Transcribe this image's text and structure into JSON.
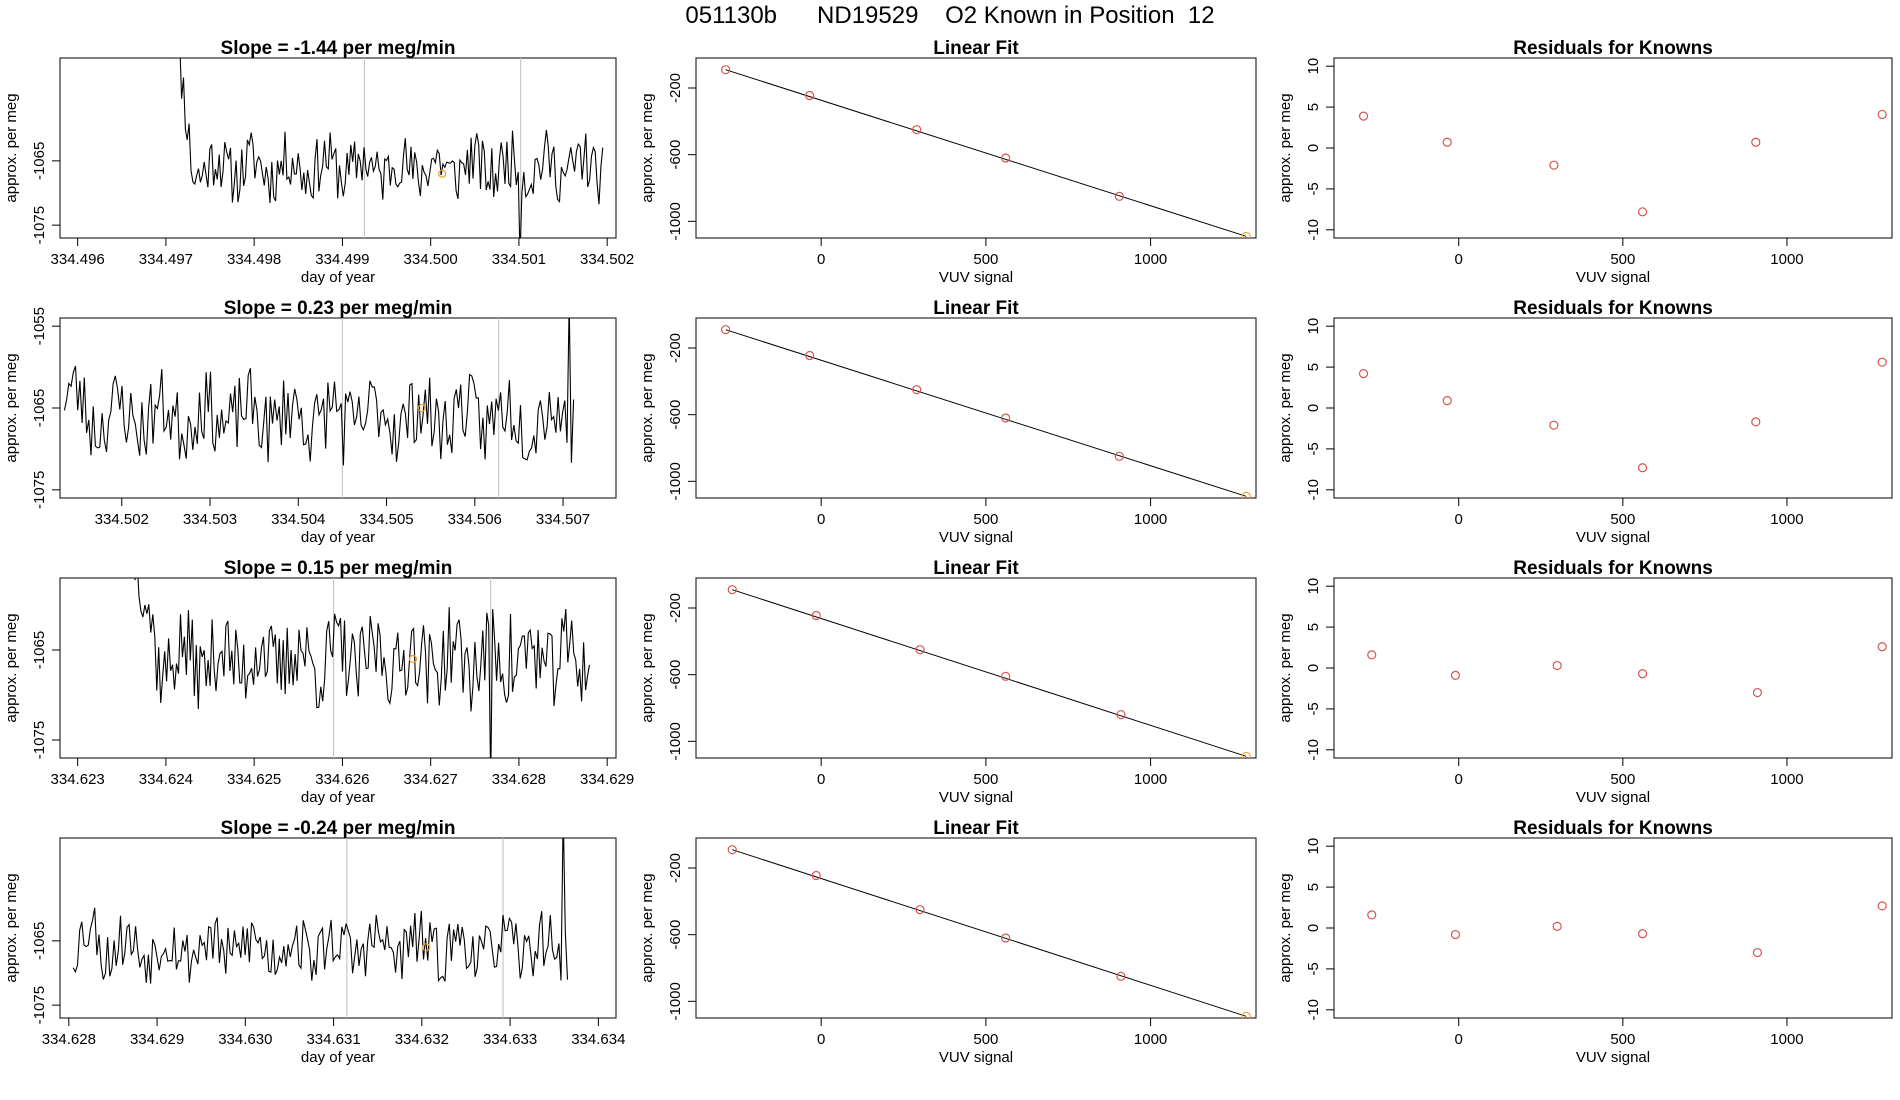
{
  "title": "051130b      ND19529    O2 Known in Position  12",
  "colors": {
    "line": "#000000",
    "point_known": "#d9534f",
    "point_highlight": "#f0a030",
    "grid_vline": "#c8c8c8"
  },
  "chart_data": [
    {
      "type": "line",
      "title": "Slope =  -1.44  per meg/min",
      "xlabel": "day of year",
      "ylabel": "approx. per meg",
      "xlim": [
        334.4958,
        334.5021
      ],
      "ylim": [
        -1077,
        -1049
      ],
      "xticks": [
        334.496,
        334.497,
        334.498,
        334.499,
        334.5,
        334.501,
        334.502
      ],
      "xtick_labels": [
        "334.496",
        "334.497",
        "334.498",
        "334.499",
        "334.500",
        "334.501",
        "334.502"
      ],
      "yticks": [
        -1065,
        -1075
      ],
      "ytick_labels": [
        "-1065",
        "-1075"
      ],
      "vlines": [
        334.49925,
        334.50102
      ],
      "highlight_point": {
        "x": 334.50013,
        "y": -1067
      },
      "series_x_range": [
        334.49705,
        334.50195
      ],
      "series_y_start": -1040,
      "series_y_end": -1066,
      "series_seed": 11,
      "spikes": [
        {
          "x": 334.4971,
          "y": -1040
        },
        {
          "x": 334.50102,
          "y": -1080
        }
      ]
    },
    {
      "type": "scatter",
      "title": "Linear Fit",
      "xlabel": "VUV signal",
      "ylabel": "approx. per meg",
      "xlim": [
        -380,
        1320
      ],
      "ylim": [
        -1100,
        -20
      ],
      "xticks": [
        0,
        500,
        1000
      ],
      "xtick_labels": [
        "0",
        "500",
        "1000"
      ],
      "yticks": [
        -200,
        -600,
        -1000
      ],
      "ytick_labels": [
        "-200",
        "-600",
        "-1000"
      ],
      "points": [
        {
          "x": -290,
          "y": -90
        },
        {
          "x": -35,
          "y": -245
        },
        {
          "x": 290,
          "y": -450
        },
        {
          "x": 560,
          "y": -620
        },
        {
          "x": 905,
          "y": -850
        },
        {
          "x": 1290,
          "y": -1090
        }
      ],
      "fit_line": [
        [
          -290,
          -90
        ],
        [
          1290,
          -1090
        ]
      ]
    },
    {
      "type": "scatter",
      "title": "Residuals for Knowns",
      "xlabel": "VUV signal",
      "ylabel": "approx. per meg",
      "xlim": [
        -380,
        1320
      ],
      "ylim": [
        -11,
        11
      ],
      "xticks": [
        0,
        500,
        1000
      ],
      "xtick_labels": [
        "0",
        "500",
        "1000"
      ],
      "yticks": [
        10,
        5,
        0,
        -5,
        -10
      ],
      "ytick_labels": [
        "10",
        "5",
        "0",
        "-5",
        "-10"
      ],
      "points": [
        {
          "x": -290,
          "y": 3.9
        },
        {
          "x": -35,
          "y": 0.7
        },
        {
          "x": 290,
          "y": -2.1
        },
        {
          "x": 560,
          "y": -7.8
        },
        {
          "x": 905,
          "y": 0.7
        },
        {
          "x": 1290,
          "y": 4.1
        }
      ]
    },
    {
      "type": "line",
      "title": "Slope =  0.23  per meg/min",
      "xlabel": "day of year",
      "ylabel": "approx. per meg",
      "xlim": [
        334.5013,
        334.5076
      ],
      "ylim": [
        -1076,
        -1054
      ],
      "xticks": [
        334.502,
        334.503,
        334.504,
        334.505,
        334.506,
        334.507
      ],
      "xtick_labels": [
        "334.502",
        "334.503",
        "334.504",
        "334.505",
        "334.506",
        "334.507"
      ],
      "yticks": [
        -1055,
        -1065,
        -1075
      ],
      "ytick_labels": [
        "-1055",
        "-1065",
        "-1075"
      ],
      "vlines": [
        334.5045,
        334.50627
      ],
      "highlight_point": {
        "x": 334.5054,
        "y": -1065
      },
      "series_x_range": [
        334.50135,
        334.50712
      ],
      "series_y_start": -1063,
      "series_y_end": -1066,
      "series_seed": 23,
      "spikes": [
        {
          "x": 334.5045,
          "y": -1072
        },
        {
          "x": 334.50708,
          "y": -1052
        }
      ]
    },
    {
      "type": "scatter",
      "title": "Linear Fit",
      "xlabel": "VUV signal",
      "ylabel": "approx. per meg",
      "xlim": [
        -380,
        1320
      ],
      "ylim": [
        -1100,
        -20
      ],
      "xticks": [
        0,
        500,
        1000
      ],
      "xtick_labels": [
        "0",
        "500",
        "1000"
      ],
      "yticks": [
        -200,
        -600,
        -1000
      ],
      "ytick_labels": [
        "-200",
        "-600",
        "-1000"
      ],
      "points": [
        {
          "x": -290,
          "y": -90
        },
        {
          "x": -35,
          "y": -245
        },
        {
          "x": 290,
          "y": -450
        },
        {
          "x": 560,
          "y": -620
        },
        {
          "x": 905,
          "y": -850
        },
        {
          "x": 1290,
          "y": -1090
        }
      ],
      "fit_line": [
        [
          -290,
          -90
        ],
        [
          1290,
          -1090
        ]
      ]
    },
    {
      "type": "scatter",
      "title": "Residuals for Knowns",
      "xlabel": "VUV signal",
      "ylabel": "approx. per meg",
      "xlim": [
        -380,
        1320
      ],
      "ylim": [
        -11,
        11
      ],
      "xticks": [
        0,
        500,
        1000
      ],
      "xtick_labels": [
        "0",
        "500",
        "1000"
      ],
      "yticks": [
        10,
        5,
        0,
        -5,
        -10
      ],
      "ytick_labels": [
        "10",
        "5",
        "0",
        "-5",
        "-10"
      ],
      "points": [
        {
          "x": -290,
          "y": 4.2
        },
        {
          "x": -35,
          "y": 0.9
        },
        {
          "x": 290,
          "y": -2.1
        },
        {
          "x": 560,
          "y": -7.3
        },
        {
          "x": 905,
          "y": -1.7
        },
        {
          "x": 1290,
          "y": 5.6
        }
      ]
    },
    {
      "type": "line",
      "title": "Slope =  0.15  per meg/min",
      "xlabel": "day of year",
      "ylabel": "approx. per meg",
      "xlim": [
        334.6228,
        334.6291
      ],
      "ylim": [
        -1077,
        -1057
      ],
      "xticks": [
        334.623,
        334.624,
        334.625,
        334.626,
        334.627,
        334.628,
        334.629
      ],
      "xtick_labels": [
        "334.623",
        "334.624",
        "334.625",
        "334.626",
        "334.627",
        "334.628",
        "334.629"
      ],
      "yticks": [
        -1065,
        -1075
      ],
      "ytick_labels": [
        "-1065",
        "-1075"
      ],
      "vlines": [
        334.6259,
        334.62768
      ],
      "highlight_point": {
        "x": 334.6268,
        "y": -1066
      },
      "series_x_range": [
        334.62365,
        334.6288
      ],
      "series_y_start": -1055,
      "series_y_end": -1066,
      "series_seed": 37,
      "spikes": [
        {
          "x": 334.62368,
          "y": -1055
        },
        {
          "x": 334.62768,
          "y": -1080
        },
        {
          "x": 334.6279,
          "y": -1061
        }
      ]
    },
    {
      "type": "scatter",
      "title": "Linear Fit",
      "xlabel": "VUV signal",
      "ylabel": "approx. per meg",
      "xlim": [
        -380,
        1320
      ],
      "ylim": [
        -1100,
        -20
      ],
      "xticks": [
        0,
        500,
        1000
      ],
      "xtick_labels": [
        "0",
        "500",
        "1000"
      ],
      "yticks": [
        -200,
        -600,
        -1000
      ],
      "ytick_labels": [
        "-200",
        "-600",
        "-1000"
      ],
      "points": [
        {
          "x": -270,
          "y": -90
        },
        {
          "x": -15,
          "y": -245
        },
        {
          "x": 300,
          "y": -450
        },
        {
          "x": 560,
          "y": -610
        },
        {
          "x": 910,
          "y": -840
        },
        {
          "x": 1290,
          "y": -1090
        }
      ],
      "fit_line": [
        [
          -270,
          -90
        ],
        [
          1290,
          -1090
        ]
      ]
    },
    {
      "type": "scatter",
      "title": "Residuals for Knowns",
      "xlabel": "VUV signal",
      "ylabel": "approx. per meg",
      "xlim": [
        -380,
        1320
      ],
      "ylim": [
        -11,
        11
      ],
      "xticks": [
        0,
        500,
        1000
      ],
      "xtick_labels": [
        "0",
        "500",
        "1000"
      ],
      "yticks": [
        10,
        5,
        0,
        -5,
        -10
      ],
      "ytick_labels": [
        "10",
        "5",
        "0",
        "-5",
        "-10"
      ],
      "points": [
        {
          "x": -265,
          "y": 1.6
        },
        {
          "x": -10,
          "y": -0.9
        },
        {
          "x": 300,
          "y": 0.3
        },
        {
          "x": 560,
          "y": -0.7
        },
        {
          "x": 910,
          "y": -3.0
        },
        {
          "x": 1290,
          "y": 2.6
        }
      ]
    },
    {
      "type": "line",
      "title": "Slope =  -0.24  per meg/min",
      "xlabel": "day of year",
      "ylabel": "approx. per meg",
      "xlim": [
        334.6279,
        334.6342
      ],
      "ylim": [
        -1077,
        -1049
      ],
      "xticks": [
        334.628,
        334.629,
        334.63,
        334.631,
        334.632,
        334.633,
        334.634
      ],
      "xtick_labels": [
        "334.628",
        "334.629",
        "334.630",
        "334.631",
        "334.632",
        "334.633",
        "334.634"
      ],
      "yticks": [
        -1065,
        -1075
      ],
      "ytick_labels": [
        "-1065",
        "-1075"
      ],
      "vlines": [
        334.63115,
        334.63292
      ],
      "highlight_point": {
        "x": 334.63205,
        "y": -1066
      },
      "series_x_range": [
        334.62805,
        334.63365
      ],
      "series_y_start": -1067,
      "series_y_end": -1062,
      "series_seed": 53,
      "spikes": [
        {
          "x": 334.6336,
          "y": -1045
        }
      ]
    },
    {
      "type": "scatter",
      "title": "Linear Fit",
      "xlabel": "VUV signal",
      "ylabel": "approx. per meg",
      "xlim": [
        -380,
        1320
      ],
      "ylim": [
        -1100,
        -20
      ],
      "xticks": [
        0,
        500,
        1000
      ],
      "xtick_labels": [
        "0",
        "500",
        "1000"
      ],
      "yticks": [
        -200,
        -600,
        -1000
      ],
      "ytick_labels": [
        "-200",
        "-600",
        "-1000"
      ],
      "points": [
        {
          "x": -270,
          "y": -90
        },
        {
          "x": -15,
          "y": -245
        },
        {
          "x": 300,
          "y": -450
        },
        {
          "x": 560,
          "y": -620
        },
        {
          "x": 910,
          "y": -850
        },
        {
          "x": 1290,
          "y": -1090
        }
      ],
      "fit_line": [
        [
          -270,
          -90
        ],
        [
          1290,
          -1090
        ]
      ]
    },
    {
      "type": "scatter",
      "title": "Residuals for Knowns",
      "xlabel": "VUV signal",
      "ylabel": "approx. per meg",
      "xlim": [
        -380,
        1320
      ],
      "ylim": [
        -11,
        11
      ],
      "xticks": [
        0,
        500,
        1000
      ],
      "xtick_labels": [
        "0",
        "500",
        "1000"
      ],
      "yticks": [
        10,
        5,
        0,
        -5,
        -10
      ],
      "ytick_labels": [
        "10",
        "5",
        "0",
        "-5",
        "-10"
      ],
      "points": [
        {
          "x": -265,
          "y": 1.6
        },
        {
          "x": -10,
          "y": -0.8
        },
        {
          "x": 300,
          "y": 0.2
        },
        {
          "x": 560,
          "y": -0.7
        },
        {
          "x": 910,
          "y": -3.0
        },
        {
          "x": 1290,
          "y": 2.7
        }
      ]
    }
  ]
}
